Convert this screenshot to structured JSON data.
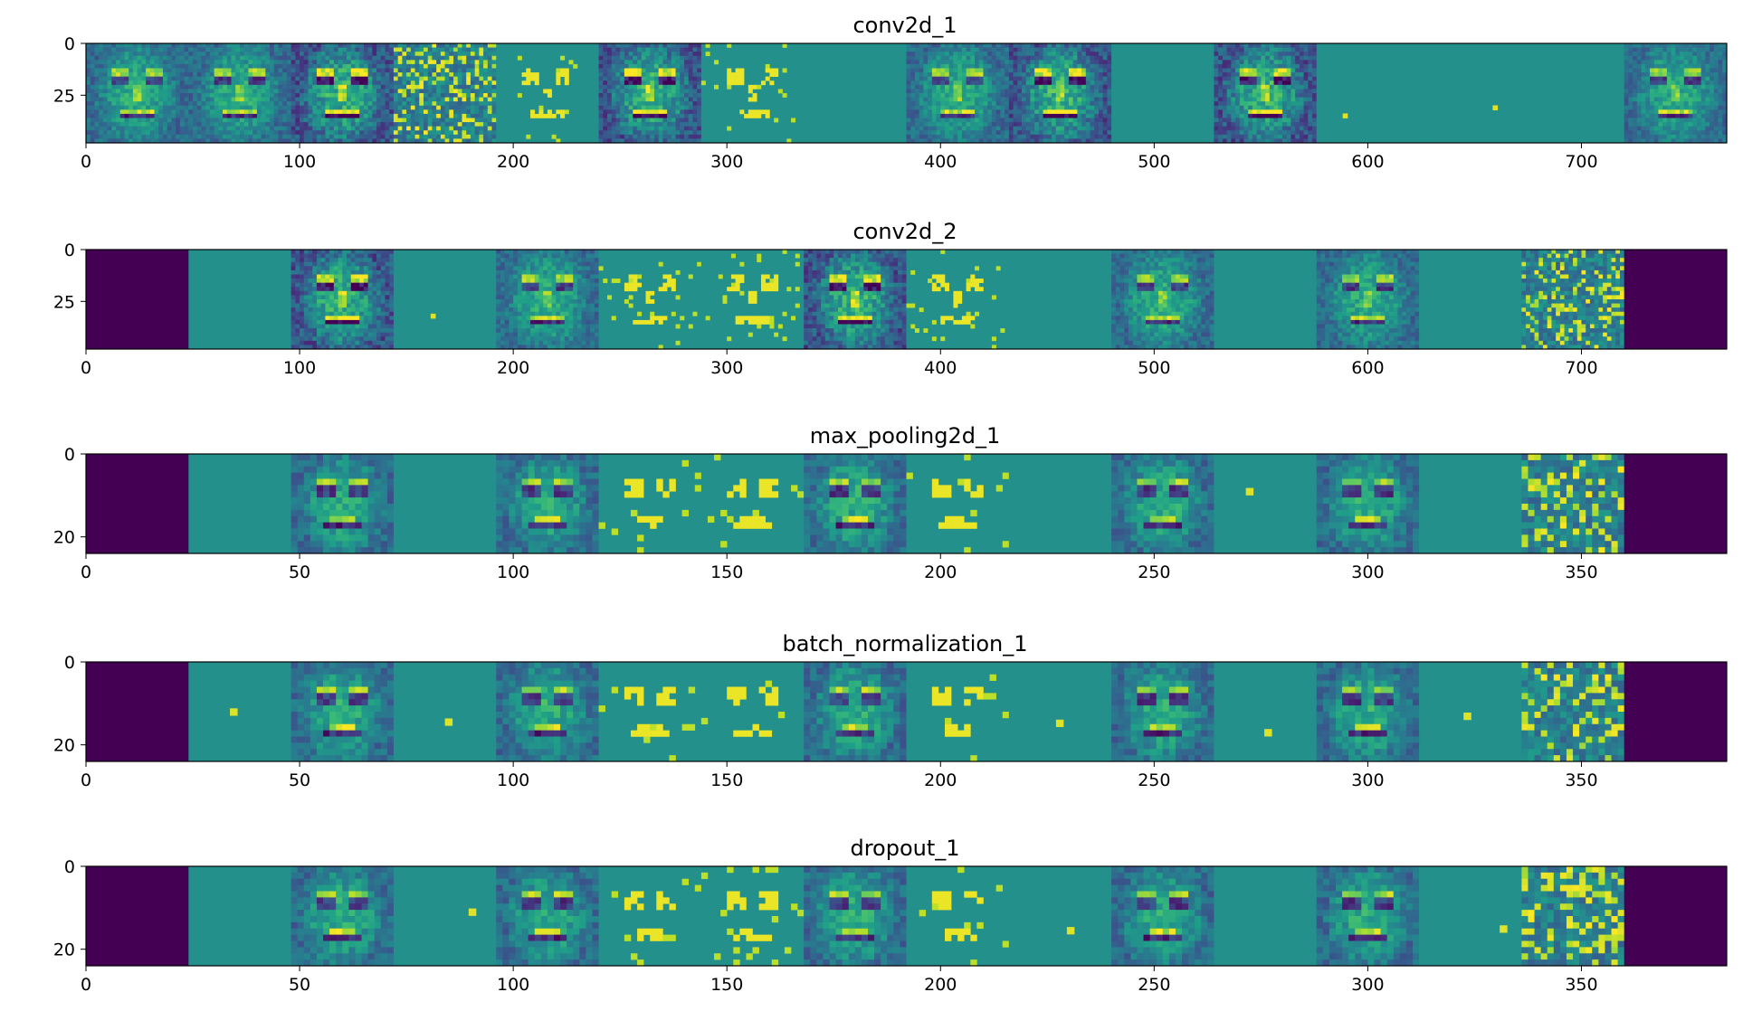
{
  "colormap": {
    "name": "viridis",
    "stops": [
      "#440154",
      "#482878",
      "#3e4a89",
      "#31688e",
      "#26828e",
      "#1f9e89",
      "#35b779",
      "#6ece58",
      "#b5de2b",
      "#fde725"
    ]
  },
  "chart_data": [
    {
      "type": "heatmap",
      "title": "conv2d_1",
      "xlim": [
        0,
        768
      ],
      "ylim": [
        48,
        0
      ],
      "xticks": [
        0,
        100,
        200,
        300,
        400,
        500,
        600,
        700
      ],
      "yticks": [
        0,
        25
      ],
      "tile_width": 48,
      "tiles": [
        "face",
        "face",
        "edge",
        "noise",
        "sparse",
        "edge",
        "sparse",
        "flat",
        "face",
        "edge",
        "flat",
        "edge",
        "flat",
        "flat",
        "flat",
        "face"
      ]
    },
    {
      "type": "heatmap",
      "title": "conv2d_2",
      "xlim": [
        0,
        768
      ],
      "ylim": [
        48,
        0
      ],
      "xticks": [
        0,
        100,
        200,
        300,
        400,
        500,
        600,
        700
      ],
      "yticks": [
        0,
        25
      ],
      "tile_width": 48,
      "tiles": [
        "dark",
        "flat",
        "edge",
        "flat",
        "face",
        "sparse",
        "sparse",
        "edge",
        "sparse",
        "flat",
        "face",
        "flat",
        "face",
        "flat",
        "noise",
        "dark"
      ]
    },
    {
      "type": "heatmap",
      "title": "max_pooling2d_1",
      "xlim": [
        0,
        384
      ],
      "ylim": [
        24,
        0
      ],
      "xticks": [
        0,
        50,
        100,
        150,
        200,
        250,
        300,
        350
      ],
      "yticks": [
        0,
        20
      ],
      "tile_width": 24,
      "tiles": [
        "dark",
        "flat",
        "pool",
        "flat",
        "pool",
        "sparse",
        "sparse",
        "pool",
        "sparse",
        "flat",
        "pool",
        "flat",
        "pool",
        "flat",
        "noise",
        "dark"
      ]
    },
    {
      "type": "heatmap",
      "title": "batch_normalization_1",
      "xlim": [
        0,
        384
      ],
      "ylim": [
        24,
        0
      ],
      "xticks": [
        0,
        50,
        100,
        150,
        200,
        250,
        300,
        350
      ],
      "yticks": [
        0,
        20
      ],
      "tile_width": 24,
      "tiles": [
        "dark",
        "flat",
        "pool",
        "flat",
        "pool",
        "sparse",
        "sparse",
        "pool",
        "sparse",
        "flat",
        "pool",
        "flat",
        "pool",
        "flat",
        "noise",
        "dark"
      ]
    },
    {
      "type": "heatmap",
      "title": "dropout_1",
      "xlim": [
        0,
        384
      ],
      "ylim": [
        24,
        0
      ],
      "xticks": [
        0,
        50,
        100,
        150,
        200,
        250,
        300,
        350
      ],
      "yticks": [
        0,
        20
      ],
      "tile_width": 24,
      "tiles": [
        "dark",
        "flat",
        "pool",
        "flat",
        "pool",
        "sparse",
        "sparse",
        "pool",
        "sparse",
        "flat",
        "pool",
        "flat",
        "pool",
        "flat",
        "noise",
        "dark"
      ]
    }
  ]
}
